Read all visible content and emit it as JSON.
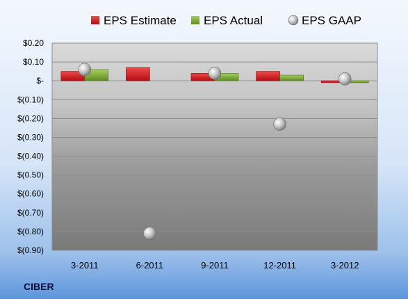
{
  "chart_data": {
    "type": "bar",
    "company": "CIBER",
    "categories": [
      "3-2011",
      "6-2011",
      "9-2011",
      "12-2011",
      "3-2012"
    ],
    "series": [
      {
        "name": "EPS Estimate",
        "kind": "bar",
        "color": "#e0161c",
        "values": [
          0.05,
          0.07,
          0.04,
          0.05,
          -0.01
        ]
      },
      {
        "name": "EPS Actual",
        "kind": "bar",
        "color": "#7fae3a",
        "values": [
          0.06,
          null,
          0.04,
          0.03,
          -0.01
        ]
      },
      {
        "name": "EPS GAAP",
        "kind": "marker",
        "color": "#b8b8b8",
        "values": [
          0.06,
          -0.81,
          0.04,
          -0.23,
          0.01
        ]
      }
    ],
    "y_ticks": [
      {
        "value": 0.2,
        "label": "$0.20"
      },
      {
        "value": 0.1,
        "label": "$0.10"
      },
      {
        "value": 0.0,
        "label": "$-"
      },
      {
        "value": -0.1,
        "label": "$(0.10)"
      },
      {
        "value": -0.2,
        "label": "$(0.20)"
      },
      {
        "value": -0.3,
        "label": "$(0.30)"
      },
      {
        "value": -0.4,
        "label": "$(0.40)"
      },
      {
        "value": -0.5,
        "label": "$(0.50)"
      },
      {
        "value": -0.6,
        "label": "$(0.60)"
      },
      {
        "value": -0.7,
        "label": "$(0.70)"
      },
      {
        "value": -0.8,
        "label": "$(0.80)"
      },
      {
        "value": -0.9,
        "label": "$(0.90)"
      }
    ],
    "ylim": [
      -0.9,
      0.2
    ],
    "grid": true,
    "legend_position": "top"
  }
}
